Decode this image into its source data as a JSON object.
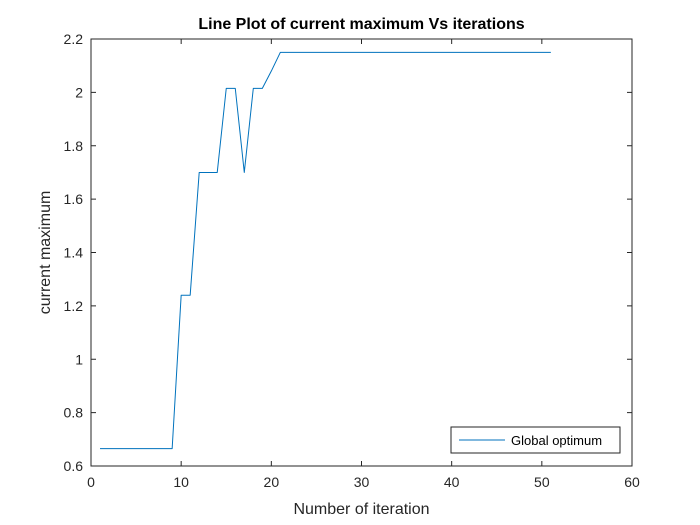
{
  "chart_data": {
    "type": "line",
    "title": "Line Plot of current maximum Vs iterations",
    "xlabel": "Number of iteration",
    "ylabel": "current maximum",
    "xlim": [
      0,
      60
    ],
    "ylim": [
      0.6,
      2.2
    ],
    "xticks": [
      0,
      10,
      20,
      30,
      40,
      50,
      60
    ],
    "yticks": [
      0.6,
      0.8,
      1,
      1.2,
      1.4,
      1.6,
      1.8,
      2,
      2.2
    ],
    "xtick_labels": [
      "0",
      "10",
      "20",
      "30",
      "40",
      "50",
      "60"
    ],
    "ytick_labels": [
      "0.6",
      "0.8",
      "1",
      "1.2",
      "1.4",
      "1.6",
      "1.8",
      "2",
      "2.2"
    ],
    "grid": false,
    "legend_position": "bottom-right",
    "series": [
      {
        "name": "Global optimum",
        "color": "#0072BD",
        "x": [
          1,
          2,
          3,
          4,
          5,
          6,
          7,
          8,
          9,
          10,
          11,
          12,
          13,
          14,
          15,
          16,
          17,
          18,
          19,
          20,
          21,
          22,
          23,
          24,
          25,
          26,
          27,
          28,
          29,
          30,
          31,
          32,
          33,
          34,
          35,
          36,
          37,
          38,
          39,
          40,
          41,
          42,
          43,
          44,
          45,
          46,
          47,
          48,
          49,
          50,
          51
        ],
        "y": [
          0.665,
          0.665,
          0.665,
          0.665,
          0.665,
          0.665,
          0.665,
          0.665,
          0.665,
          1.24,
          1.24,
          1.7,
          1.7,
          1.7,
          2.015,
          2.015,
          1.7,
          2.015,
          2.015,
          2.08,
          2.15,
          2.15,
          2.15,
          2.15,
          2.15,
          2.15,
          2.15,
          2.15,
          2.15,
          2.15,
          2.15,
          2.15,
          2.15,
          2.15,
          2.15,
          2.15,
          2.15,
          2.15,
          2.15,
          2.15,
          2.15,
          2.15,
          2.15,
          2.15,
          2.15,
          2.15,
          2.15,
          2.15,
          2.15,
          2.15,
          2.15
        ]
      }
    ]
  }
}
